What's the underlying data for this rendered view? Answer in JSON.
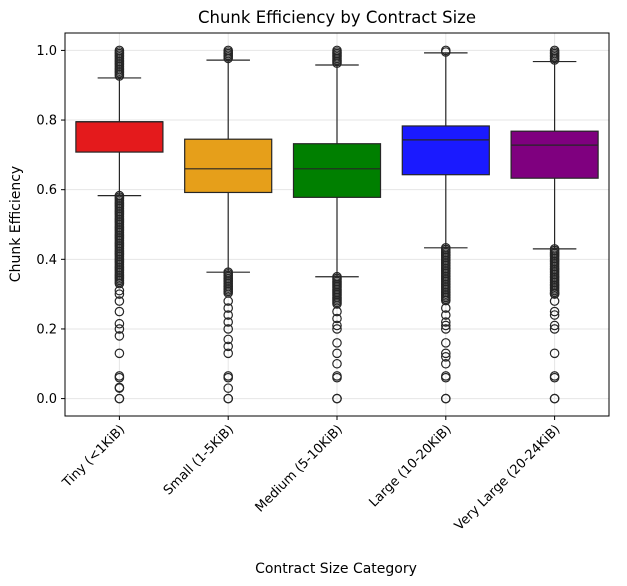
{
  "chart_data": {
    "type": "boxplot",
    "title": "Chunk Efficiency by Contract Size",
    "xlabel": "Contract Size Category",
    "ylabel": "Chunk Efficiency",
    "ylim": [
      -0.05,
      1.05
    ],
    "yticks": [
      0.0,
      0.2,
      0.4,
      0.6,
      0.8,
      1.0
    ],
    "ytick_labels": [
      "0.0",
      "0.2",
      "0.4",
      "0.6",
      "0.8",
      "1.0"
    ],
    "grid": true,
    "categories": [
      "Tiny (<1KiB)",
      "Small (1-5KiB)",
      "Medium (5-10KiB)",
      "Large (10-20KiB)",
      "Very Large (20-24KiB)"
    ],
    "boxes": [
      {
        "category": "Tiny (<1KiB)",
        "color": "#e41a1c",
        "whislo": 0.583,
        "q1": 0.708,
        "med": 0.795,
        "q3": 0.795,
        "whishi": 0.921,
        "fliers_dense": [
          [
            0.923,
            1.0
          ],
          [
            0.33,
            0.583
          ]
        ],
        "fliers": [
          0.0,
          0.0,
          0.03,
          0.032,
          0.06,
          0.065,
          0.13,
          0.18,
          0.2,
          0.215,
          0.25,
          0.28,
          0.3,
          0.31
        ]
      },
      {
        "category": "Small (1-5KiB)",
        "color": "#e69f1a",
        "whislo": 0.363,
        "q1": 0.592,
        "med": 0.66,
        "q3": 0.745,
        "whishi": 0.972,
        "fliers_dense": [
          [
            0.975,
            1.0
          ],
          [
            0.3,
            0.363
          ]
        ],
        "fliers": [
          0.0,
          0.0,
          0.03,
          0.06,
          0.065,
          0.13,
          0.15,
          0.17,
          0.2,
          0.22,
          0.24,
          0.26,
          0.28
        ]
      },
      {
        "category": "Medium (5-10KiB)",
        "color": "#007f00",
        "whislo": 0.35,
        "q1": 0.578,
        "med": 0.66,
        "q3": 0.732,
        "whishi": 0.958,
        "fliers_dense": [
          [
            0.96,
            1.0
          ],
          [
            0.27,
            0.35
          ]
        ],
        "fliers": [
          0.0,
          0.0,
          0.06,
          0.065,
          0.1,
          0.13,
          0.16,
          0.2,
          0.21,
          0.23,
          0.25
        ]
      },
      {
        "category": "Large (10-20KiB)",
        "color": "#1a1aff",
        "whislo": 0.433,
        "q1": 0.643,
        "med": 0.743,
        "q3": 0.783,
        "whishi": 0.993,
        "fliers_dense": [
          [
            0.995,
            1.0
          ],
          [
            0.28,
            0.433
          ]
        ],
        "fliers": [
          0.0,
          0.0,
          0.06,
          0.065,
          0.1,
          0.12,
          0.13,
          0.16,
          0.2,
          0.21,
          0.22,
          0.24,
          0.26
        ]
      },
      {
        "category": "Very Large (20-24KiB)",
        "color": "#7f007f",
        "whislo": 0.43,
        "q1": 0.633,
        "med": 0.728,
        "q3": 0.768,
        "whishi": 0.968,
        "fliers_dense": [
          [
            0.97,
            1.0
          ],
          [
            0.3,
            0.43
          ]
        ],
        "fliers": [
          0.0,
          0.0,
          0.06,
          0.065,
          0.13,
          0.2,
          0.21,
          0.24,
          0.25,
          0.28,
          0.3
        ]
      }
    ]
  }
}
